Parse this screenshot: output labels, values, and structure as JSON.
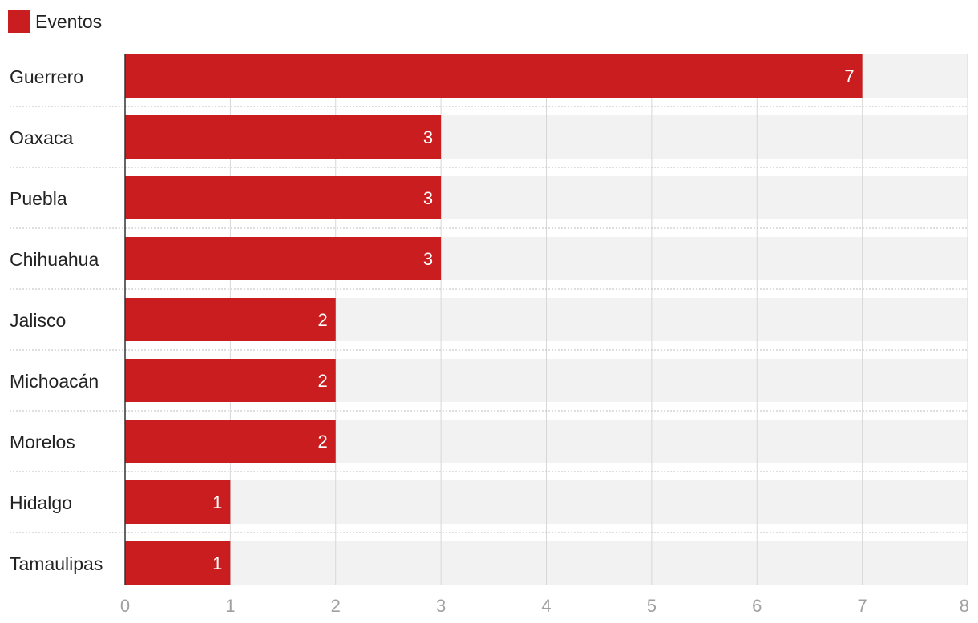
{
  "colors": {
    "bar": "#c91d1f",
    "track": "#f2f2f2",
    "grid": "#d7d7d7",
    "axis": "#333333",
    "tick_label": "#a0a0a0",
    "category_label": "#222222",
    "value_label": "#ffffff"
  },
  "chart_data": {
    "type": "bar",
    "orientation": "horizontal",
    "categories": [
      "Guerrero",
      "Oaxaca",
      "Puebla",
      "Chihuahua",
      "Jalisco",
      "Michoacán",
      "Morelos",
      "Hidalgo",
      "Tamaulipas"
    ],
    "series": [
      {
        "name": "Eventos",
        "values": [
          7,
          3,
          3,
          3,
          2,
          2,
          2,
          1,
          1
        ]
      }
    ],
    "xlim": [
      0,
      8
    ],
    "xticks": [
      "0",
      "1",
      "2",
      "3",
      "4",
      "5",
      "6",
      "7",
      "8"
    ],
    "value_labels": [
      "7",
      "3",
      "3",
      "3",
      "2",
      "2",
      "2",
      "1",
      "1"
    ],
    "legend": "top-left",
    "grid": true
  }
}
